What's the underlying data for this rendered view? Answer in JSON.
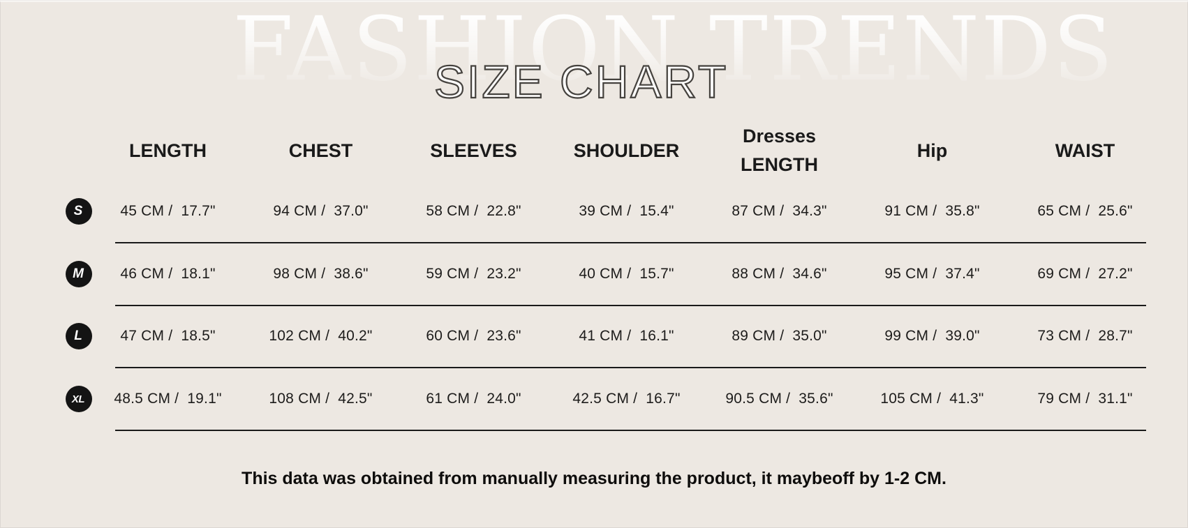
{
  "page": {
    "watermark": "FASHION TRENDS",
    "title": "SIZE CHART",
    "footnote": "This data was obtained from manually measuring the product, it maybeoff by 1-2 CM."
  },
  "colors": {
    "background": "#EDE8E2",
    "text": "#1A1A1A",
    "badge_bg": "#141414",
    "badge_text": "#FFFFFF",
    "divider": "#1A1A1A"
  },
  "table": {
    "columns": [
      {
        "id": "length",
        "lines": [
          "LENGTH"
        ]
      },
      {
        "id": "chest",
        "lines": [
          "CHEST"
        ]
      },
      {
        "id": "sleeves",
        "lines": [
          "SLEEVES"
        ]
      },
      {
        "id": "shoulder",
        "lines": [
          "SHOULDER"
        ]
      },
      {
        "id": "dresses-length",
        "lines": [
          "Dresses",
          "LENGTH"
        ]
      },
      {
        "id": "hip",
        "lines": [
          "Hip"
        ]
      },
      {
        "id": "waist",
        "lines": [
          "WAIST"
        ]
      }
    ],
    "rows": [
      {
        "size": "S",
        "cells": [
          "45 CM /  17.7\"",
          "94 CM /  37.0\"",
          "58 CM /  22.8\"",
          "39 CM /  15.4\"",
          "87 CM /  34.3\"",
          "91 CM /  35.8\"",
          "65 CM /  25.6\""
        ]
      },
      {
        "size": "M",
        "cells": [
          "46 CM /  18.1\"",
          "98 CM /  38.6\"",
          "59 CM /  23.2\"",
          "40 CM /  15.7\"",
          "88 CM /  34.6\"",
          "95 CM /  37.4\"",
          "69 CM /  27.2\""
        ]
      },
      {
        "size": "L",
        "cells": [
          "47 CM /  18.5\"",
          "102 CM /  40.2\"",
          "60 CM /  23.6\"",
          "41 CM /  16.1\"",
          "89 CM /  35.0\"",
          "99 CM /  39.0\"",
          "73 CM /  28.7\""
        ]
      },
      {
        "size": "XL",
        "cells": [
          "48.5 CM /  19.1\"",
          "108 CM /  42.5\"",
          "61 CM /  24.0\"",
          "42.5 CM /  16.7\"",
          "90.5 CM /  35.6\"",
          "105 CM /  41.3\"",
          "79 CM /  31.1\""
        ]
      }
    ]
  }
}
